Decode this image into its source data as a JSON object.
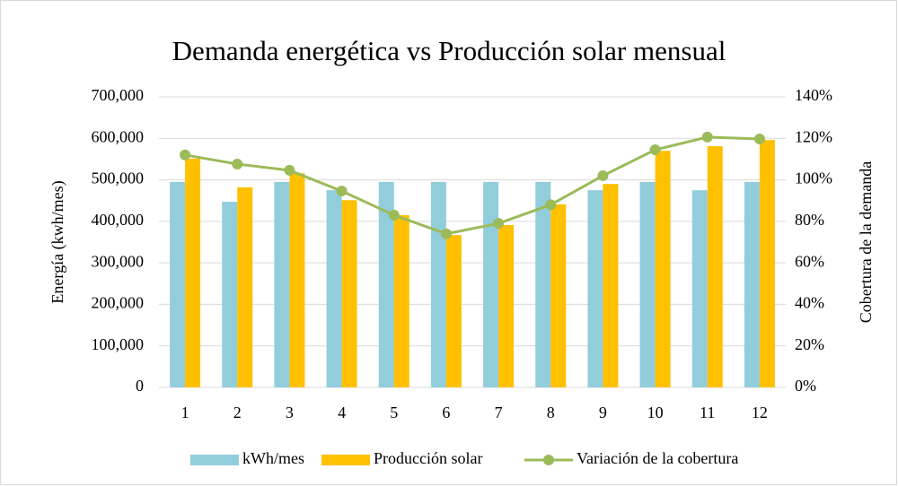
{
  "chart_data": {
    "type": "bar",
    "title": "Demanda energética vs Producción solar mensual",
    "ylabel": "Energía (kwh/mes)",
    "y2label": "Cobertura de la demanda",
    "categories": [
      "1",
      "2",
      "3",
      "4",
      "5",
      "6",
      "7",
      "8",
      "9",
      "10",
      "11",
      "12"
    ],
    "series": [
      {
        "name": "kWh/mes",
        "color": "#92cddc",
        "type": "bar",
        "values": [
          495000,
          447000,
          495000,
          475000,
          495000,
          495000,
          495000,
          495000,
          475000,
          495000,
          475000,
          495000
        ]
      },
      {
        "name": "Producción solar",
        "color": "#ffc000",
        "type": "bar",
        "values": [
          551000,
          482000,
          516000,
          451000,
          415000,
          367000,
          391000,
          441000,
          490000,
          570000,
          581000,
          596000
        ]
      },
      {
        "name": "Variación de la cobertura",
        "color": "#9bbb59",
        "type": "line",
        "axis": "y2",
        "values": [
          112,
          107.6,
          104.6,
          94.6,
          83,
          74,
          79,
          88,
          102,
          114.5,
          120.6,
          119.7
        ]
      }
    ],
    "ylim": [
      0,
      700000
    ],
    "yticks": [
      0,
      {
        "value": 100000,
        "label": "100,000"
      },
      {
        "value": 200000,
        "label": "200,000"
      },
      {
        "value": 300000,
        "label": "300,000"
      },
      {
        "value": 400000,
        "label": "400,000"
      },
      {
        "value": 500000,
        "label": "500,000"
      },
      {
        "value": 600000,
        "label": "600,000"
      },
      {
        "value": 700000,
        "label": "700,000"
      }
    ],
    "y2lim": [
      0,
      140
    ],
    "y2ticks": [
      {
        "value": 0,
        "label": "0%"
      },
      {
        "value": 20,
        "label": "20%"
      },
      {
        "value": 40,
        "label": "40%"
      },
      {
        "value": 60,
        "label": "60%"
      },
      {
        "value": 80,
        "label": "80%"
      },
      {
        "value": 100,
        "label": "100%"
      },
      {
        "value": 120,
        "label": "120%"
      },
      {
        "value": 140,
        "label": "140%"
      }
    ],
    "grid": true,
    "legend": "bottom"
  }
}
